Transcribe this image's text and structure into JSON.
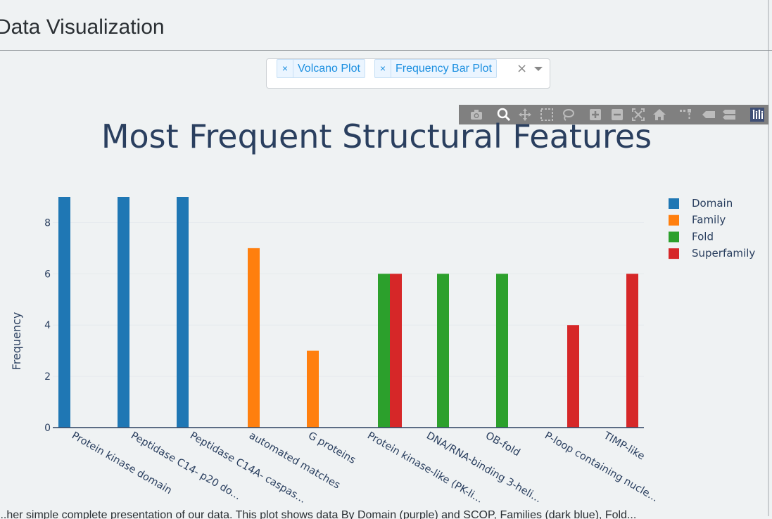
{
  "page": {
    "title": "Data Visualization"
  },
  "plot_selector": {
    "selected": [
      {
        "label": "Volcano Plot",
        "remove": "×"
      },
      {
        "label": "Frequency Bar Plot",
        "remove": "×"
      }
    ],
    "clear_symbol": "×"
  },
  "modebar": {
    "buttons": [
      "camera-icon",
      "zoom-icon",
      "pan-icon",
      "box-select-icon",
      "lasso-select-icon",
      "zoom-in-icon",
      "zoom-out-icon",
      "autoscale-icon",
      "reset-axes-icon",
      "spike-lines-icon",
      "hover-closest-icon",
      "hover-compare-icon",
      "plotly-logo-icon"
    ]
  },
  "footer": {
    "text": "...her simple complete presentation of our data. This plot shows data By Domain (purple) and SCOP, Families (dark blue), Fold..."
  },
  "chart_data": {
    "type": "bar",
    "title": "Most Frequent Structural Features",
    "xlabel": "",
    "ylabel": "Frequency",
    "ylim": [
      0,
      9
    ],
    "yticks": [
      0,
      2,
      4,
      6,
      8
    ],
    "categories": [
      "Protein kinase domain",
      "Peptidase C14-  p20 do...",
      "Peptidase C14A- caspas...",
      "automated matches",
      "G proteins",
      "Protein kinase-like (PK-li...",
      "DNA/RNA-binding 3-heli...",
      "OB-fold",
      "P-loop containing nucle...",
      "TIMP-like"
    ],
    "series": [
      {
        "name": "Domain",
        "color": "#1f77b4",
        "values": [
          9,
          9,
          9,
          null,
          null,
          null,
          null,
          null,
          null,
          null
        ]
      },
      {
        "name": "Family",
        "color": "#ff7f0e",
        "values": [
          null,
          null,
          null,
          7,
          3,
          null,
          null,
          null,
          null,
          null
        ]
      },
      {
        "name": "Fold",
        "color": "#2ca02c",
        "values": [
          null,
          null,
          null,
          null,
          null,
          6,
          6,
          6,
          null,
          null
        ]
      },
      {
        "name": "Superfamily",
        "color": "#d62728",
        "values": [
          null,
          null,
          null,
          null,
          null,
          6,
          null,
          null,
          4,
          6
        ]
      }
    ],
    "grid": true,
    "legend": "top-right"
  }
}
